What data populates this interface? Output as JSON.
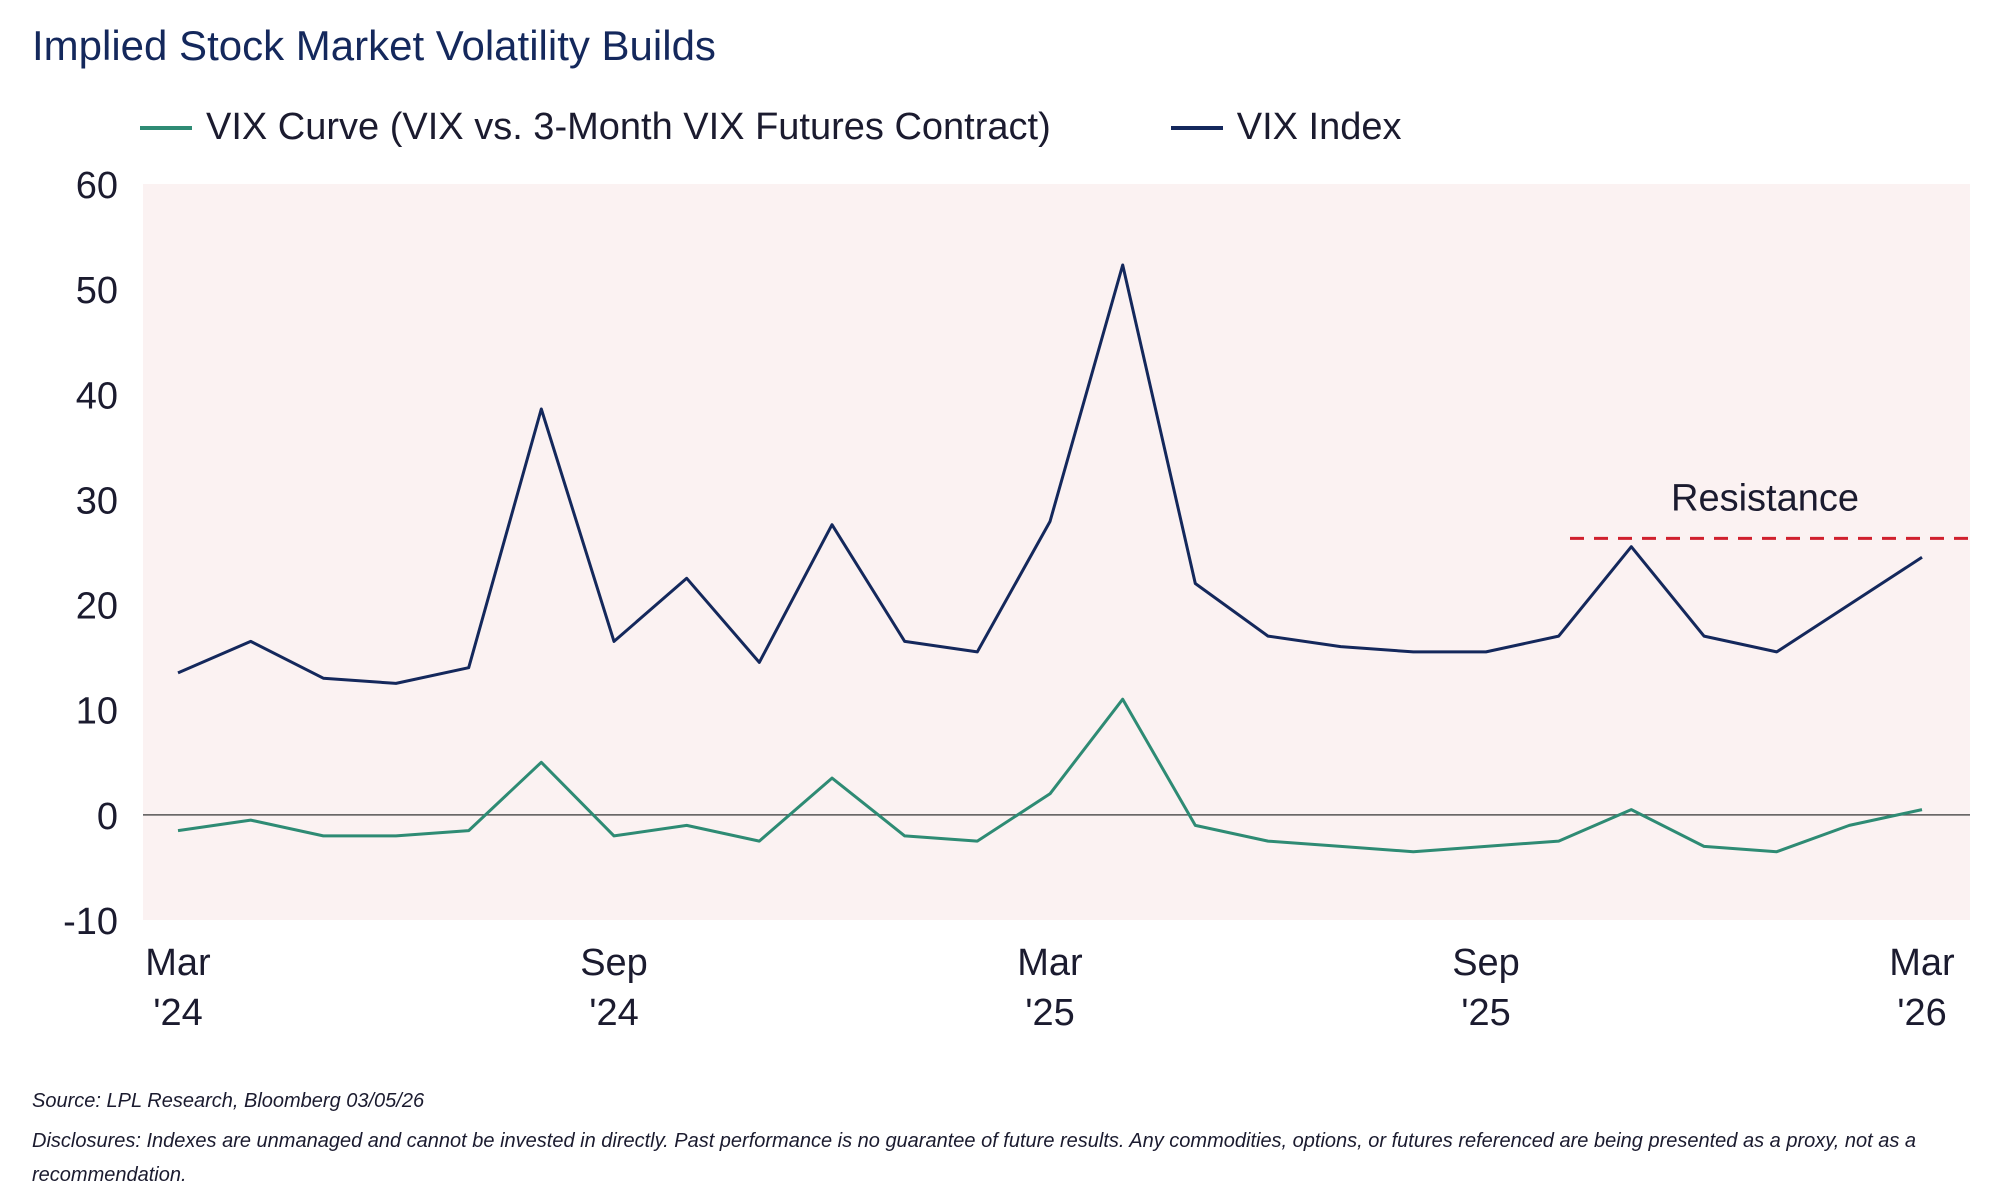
{
  "title": "Implied Stock Market Volatility Builds",
  "legend": [
    {
      "label": "VIX Curve (VIX vs. 3-Month VIX Futures Contract)",
      "color": "#2e8b74"
    },
    {
      "label": "VIX Index",
      "color": "#14285c"
    }
  ],
  "source": "Source: LPL Research, Bloomberg 03/05/26",
  "disclosure": "Disclosures: Indexes are unmanaged and cannot be invested in directly. Past performance is no guarantee of future results. Any commodities, options, or futures referenced are being presented as a proxy, not as a recommendation.",
  "chart_data": {
    "type": "line",
    "ylim": [
      -10,
      60
    ],
    "yticks": [
      "60",
      "50",
      "40",
      "30",
      "20",
      "10",
      "0",
      "-10"
    ],
    "xticks": [
      {
        "x": "2024-03",
        "line1": "Mar",
        "line2": "'24"
      },
      {
        "x": "2024-09",
        "line1": "Sep",
        "line2": "'24"
      },
      {
        "x": "2025-03",
        "line1": "Mar",
        "line2": "'25"
      },
      {
        "x": "2025-09",
        "line1": "Sep",
        "line2": "'25"
      },
      {
        "x": "2026-03",
        "line1": "Mar",
        "line2": "'26"
      }
    ],
    "x": [
      "2024-03",
      "2024-04",
      "2024-05",
      "2024-06",
      "2024-07",
      "2024-08",
      "2024-09",
      "2024-10",
      "2024-11",
      "2024-12",
      "2025-01",
      "2025-02",
      "2025-03",
      "2025-04",
      "2025-05",
      "2025-06",
      "2025-07",
      "2025-08",
      "2025-09",
      "2025-10",
      "2025-11",
      "2025-12",
      "2026-01",
      "2026-02",
      "2026-03"
    ],
    "series": [
      {
        "name": "VIX Index",
        "color": "#14285c",
        "values": [
          13.5,
          16.5,
          13.0,
          12.5,
          14.0,
          38.6,
          16.5,
          22.5,
          14.5,
          27.6,
          16.5,
          15.5,
          27.9,
          52.3,
          22.0,
          17.0,
          16.0,
          15.5,
          15.5,
          17.0,
          25.5,
          17.0,
          15.5,
          20.0,
          24.5
        ]
      },
      {
        "name": "VIX Curve (VIX vs. 3-Month VIX Futures Contract)",
        "color": "#2e8b74",
        "values": [
          -1.5,
          -0.5,
          -2.0,
          -2.0,
          -1.5,
          5.0,
          -2.0,
          -1.0,
          -2.5,
          3.5,
          -2.0,
          -2.5,
          2.0,
          11.0,
          -1.0,
          -2.5,
          -3.0,
          -3.5,
          -3.0,
          -2.5,
          0.5,
          -3.0,
          -3.5,
          -1.0,
          0.5
        ]
      }
    ],
    "annotation": {
      "label": "Resistance",
      "value": 26.3,
      "color": "#d0202e"
    },
    "zero_line": 0
  }
}
